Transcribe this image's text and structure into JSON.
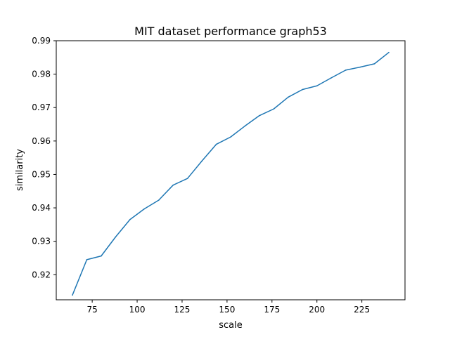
{
  "chart_data": {
    "type": "line",
    "title": "MIT dataset performance graph53",
    "xlabel": "scale",
    "ylabel": "similarity",
    "xlim": [
      55,
      249
    ],
    "ylim": [
      0.9125,
      0.99
    ],
    "xticks": [
      75,
      100,
      125,
      150,
      175,
      200,
      225
    ],
    "yticks": [
      0.92,
      0.93,
      0.94,
      0.95,
      0.96,
      0.97,
      0.98,
      0.99
    ],
    "grid": false,
    "legend": "none",
    "line_color": "#1f77b4",
    "series": [
      {
        "x": [
          64,
          72,
          80,
          88,
          96,
          104,
          112,
          120,
          128,
          136,
          144,
          152,
          160,
          168,
          176,
          184,
          192,
          200,
          208,
          216,
          224,
          232,
          240
        ],
        "values": [
          0.9139,
          0.9245,
          0.9256,
          0.9313,
          0.9365,
          0.9397,
          0.9423,
          0.9468,
          0.9488,
          0.954,
          0.959,
          0.9612,
          0.9645,
          0.9676,
          0.9696,
          0.9731,
          0.9754,
          0.9765,
          0.9789,
          0.9812,
          0.9821,
          0.9831,
          0.9865
        ]
      }
    ]
  }
}
